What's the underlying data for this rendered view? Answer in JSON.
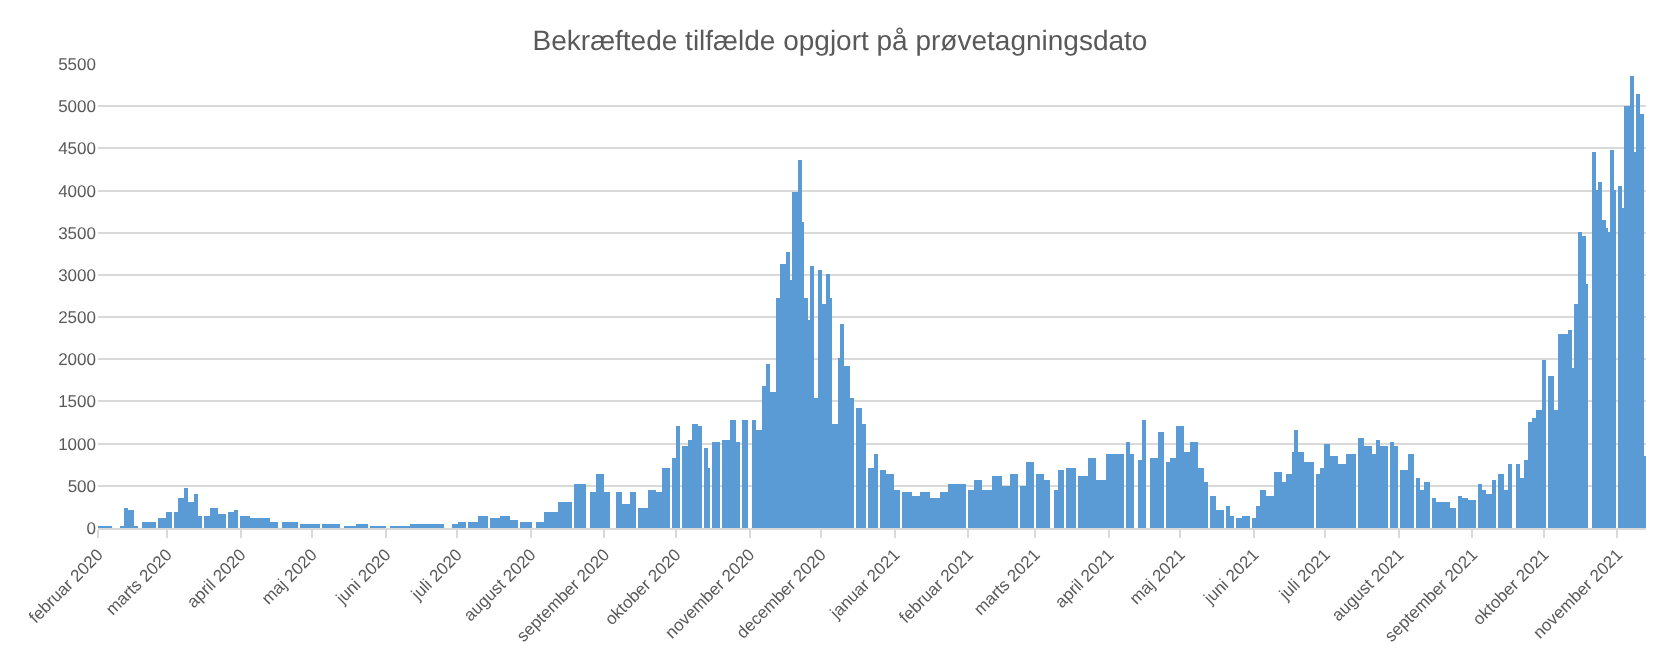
{
  "chart_data": {
    "type": "bar",
    "title": "Bekræftede tilfælde opgjort på prøvetagningsdato",
    "x": [
      "2020-02-01",
      "2020-02-05",
      "2020-02-11",
      "2020-02-13",
      "2020-02-15",
      "2020-02-17",
      "2020-02-21",
      "2020-02-24",
      "2020-02-28",
      "2020-03-02",
      "2020-03-05",
      "2020-03-07",
      "2020-03-09",
      "2020-03-11",
      "2020-03-13",
      "2020-03-15",
      "2020-03-18",
      "2020-03-21",
      "2020-03-24",
      "2020-03-28",
      "2020-03-30",
      "2020-04-03",
      "2020-04-07",
      "2020-04-11",
      "2020-04-15",
      "2020-04-22",
      "2020-04-30",
      "2020-05-09",
      "2020-05-17",
      "2020-05-22",
      "2020-05-29",
      "2020-06-07",
      "2020-06-15",
      "2020-06-22",
      "2020-06-30",
      "2020-07-03",
      "2020-07-08",
      "2020-07-12",
      "2020-07-17",
      "2020-07-21",
      "2020-07-25",
      "2020-07-30",
      "2020-08-05",
      "2020-08-08",
      "2020-08-11",
      "2020-08-14",
      "2020-08-17",
      "2020-08-22",
      "2020-08-27",
      "2020-08-30",
      "2020-09-02",
      "2020-09-07",
      "2020-09-10",
      "2020-09-13",
      "2020-09-17",
      "2020-09-21",
      "2020-09-24",
      "2020-09-27",
      "2020-09-30",
      "2020-10-02",
      "2020-10-05",
      "2020-10-07",
      "2020-10-09",
      "2020-10-11",
      "2020-10-14",
      "2020-10-15",
      "2020-10-18",
      "2020-10-22",
      "2020-10-25",
      "2020-10-27",
      "2020-10-30",
      "2020-11-03",
      "2020-11-05",
      "2020-11-07",
      "2020-11-09",
      "2020-11-11",
      "2020-11-13",
      "2020-11-15",
      "2020-11-17",
      "2020-11-18",
      "2020-11-20",
      "2020-11-22",
      "2020-11-23",
      "2020-11-25",
      "2020-11-26",
      "2020-11-27",
      "2020-11-29",
      "2020-12-01",
      "2020-12-02",
      "2020-12-04",
      "2020-12-05",
      "2020-12-07",
      "2020-12-09",
      "2020-12-10",
      "2020-12-12",
      "2020-12-14",
      "2020-12-17",
      "2020-12-19",
      "2020-12-22",
      "2020-12-24",
      "2020-12-27",
      "2020-12-30",
      "2021-01-02",
      "2021-01-06",
      "2021-01-10",
      "2021-01-14",
      "2021-01-18",
      "2021-01-22",
      "2021-01-25",
      "2021-01-29",
      "2021-02-02",
      "2021-02-05",
      "2021-02-09",
      "2021-02-13",
      "2021-02-17",
      "2021-02-20",
      "2021-02-24",
      "2021-02-27",
      "2021-03-03",
      "2021-03-06",
      "2021-03-10",
      "2021-03-12",
      "2021-03-16",
      "2021-03-21",
      "2021-03-25",
      "2021-03-29",
      "2021-04-02",
      "2021-04-06",
      "2021-04-09",
      "2021-04-11",
      "2021-04-14",
      "2021-04-16",
      "2021-04-20",
      "2021-04-23",
      "2021-04-26",
      "2021-04-28",
      "2021-05-01",
      "2021-05-04",
      "2021-05-07",
      "2021-05-10",
      "2021-05-12",
      "2021-05-15",
      "2021-05-18",
      "2021-05-21",
      "2021-05-23",
      "2021-05-26",
      "2021-05-29",
      "2021-06-01",
      "2021-06-03",
      "2021-06-05",
      "2021-06-08",
      "2021-06-11",
      "2021-06-14",
      "2021-06-16",
      "2021-06-18",
      "2021-06-19",
      "2021-06-21",
      "2021-06-23",
      "2021-06-25",
      "2021-06-28",
      "2021-06-30",
      "2021-07-02",
      "2021-07-05",
      "2021-07-08",
      "2021-07-11",
      "2021-07-13",
      "2021-07-16",
      "2021-07-19",
      "2021-07-22",
      "2021-07-23",
      "2021-07-26",
      "2021-07-29",
      "2021-07-31",
      "2021-08-03",
      "2021-08-06",
      "2021-08-09",
      "2021-08-11",
      "2021-08-13",
      "2021-08-16",
      "2021-08-18",
      "2021-08-21",
      "2021-08-24",
      "2021-08-27",
      "2021-08-29",
      "2021-09-01",
      "2021-09-04",
      "2021-09-06",
      "2021-09-08",
      "2021-09-10",
      "2021-09-13",
      "2021-09-15",
      "2021-09-17",
      "2021-09-20",
      "2021-09-22",
      "2021-09-24",
      "2021-09-25",
      "2021-09-27",
      "2021-09-29",
      "2021-10-01",
      "2021-10-04",
      "2021-10-06",
      "2021-10-08",
      "2021-10-10",
      "2021-10-12",
      "2021-10-13",
      "2021-10-15",
      "2021-10-16",
      "2021-10-18",
      "2021-10-19",
      "2021-10-22",
      "2021-10-23",
      "2021-10-25",
      "2021-10-26",
      "2021-10-27",
      "2021-10-29",
      "2021-10-30",
      "2021-10-31",
      "2021-11-02",
      "2021-11-03",
      "2021-11-05",
      "2021-11-07",
      "2021-11-08",
      "2021-11-10",
      "2021-11-11",
      "2021-11-12"
    ],
    "series": [
      {
        "color": "#5b9bd5",
        "values": [
          20,
          20,
          20,
          240,
          220,
          20,
          60,
          80,
          130,
          180,
          200,
          350,
          470,
          300,
          400,
          140,
          140,
          240,
          160,
          200,
          220,
          150,
          110,
          110,
          60,
          60,
          40,
          30,
          20,
          50,
          20,
          10,
          30,
          30,
          30,
          60,
          70,
          150,
          130,
          140,
          100,
          80,
          70,
          180,
          200,
          300,
          320,
          530,
          420,
          630,
          420,
          420,
          280,
          420,
          240,
          440,
          420,
          720,
          830,
          1200,
          980,
          1050,
          1240,
          1200,
          940,
          720,
          1020,
          1050,
          1290,
          1020,
          1280,
          1280,
          1170,
          1690,
          1950,
          1610,
          2730,
          3140,
          3280,
          2950,
          3990,
          4360,
          3620,
          2730,
          2470,
          3100,
          1540,
          3060,
          2650,
          3020,
          2730,
          1240,
          2020,
          2430,
          1910,
          1540,
          1430,
          1240,
          720,
          870,
          680,
          650,
          460,
          420,
          390,
          420,
          350,
          420,
          530,
          530,
          460,
          570,
          460,
          610,
          500,
          650,
          500,
          780,
          650,
          570,
          460,
          680,
          720,
          610,
          830,
          570,
          870,
          870,
          1020,
          870,
          800,
          1280,
          830,
          1130,
          780,
          830,
          1220,
          900,
          1030,
          700,
          550,
          390,
          220,
          250,
          150,
          130,
          150,
          130,
          250,
          460,
          390,
          660,
          550,
          650,
          900,
          1170,
          900,
          780,
          790,
          650,
          700,
          1000,
          850,
          750,
          870,
          870,
          1060,
          980,
          880,
          1050,
          980,
          1020,
          980,
          680,
          870,
          600,
          450,
          550,
          350,
          300,
          320,
          230,
          380,
          350,
          330,
          520,
          450,
          400,
          580,
          650,
          450,
          760,
          760,
          600,
          800,
          1250,
          1300,
          1400,
          2000,
          1800,
          1400,
          2300,
          2300,
          2350,
          1900,
          2660,
          3500,
          3450,
          2900,
          4450,
          4000,
          4100,
          3650,
          3550,
          3500,
          4480,
          4000,
          4050,
          3800,
          5000,
          5350,
          4450,
          5140,
          4900,
          860
        ]
      }
    ],
    "xlim": [
      "2020-02-01",
      "2021-11-13"
    ],
    "xticks": [
      {
        "value": "2020-02-01",
        "label": "februar 2020"
      },
      {
        "value": "2020-03-01",
        "label": "marts 2020"
      },
      {
        "value": "2020-04-01",
        "label": "april 2020"
      },
      {
        "value": "2020-05-01",
        "label": "maj 2020"
      },
      {
        "value": "2020-06-01",
        "label": "juni 2020"
      },
      {
        "value": "2020-07-01",
        "label": "juli 2020"
      },
      {
        "value": "2020-08-01",
        "label": "august 2020"
      },
      {
        "value": "2020-09-01",
        "label": "september 2020"
      },
      {
        "value": "2020-10-01",
        "label": "oktober 2020"
      },
      {
        "value": "2020-11-01",
        "label": "november 2020"
      },
      {
        "value": "2020-12-01",
        "label": "december 2020"
      },
      {
        "value": "2021-01-01",
        "label": "januar 2021"
      },
      {
        "value": "2021-02-01",
        "label": "februar 2021"
      },
      {
        "value": "2021-03-01",
        "label": "marts 2021"
      },
      {
        "value": "2021-04-01",
        "label": "april 2021"
      },
      {
        "value": "2021-05-01",
        "label": "maj 2021"
      },
      {
        "value": "2021-06-01",
        "label": "juni 2021"
      },
      {
        "value": "2021-07-01",
        "label": "juli 2021"
      },
      {
        "value": "2021-08-01",
        "label": "august 2021"
      },
      {
        "value": "2021-09-01",
        "label": "september 2021"
      },
      {
        "value": "2021-10-01",
        "label": "oktober 2021"
      },
      {
        "value": "2021-11-01",
        "label": "november 2021"
      }
    ],
    "ylim": [
      0,
      5500
    ],
    "yticks": [
      0,
      500,
      1000,
      1500,
      2000,
      2500,
      3000,
      3500,
      4000,
      4500,
      5000,
      5500
    ],
    "grid": "y"
  }
}
